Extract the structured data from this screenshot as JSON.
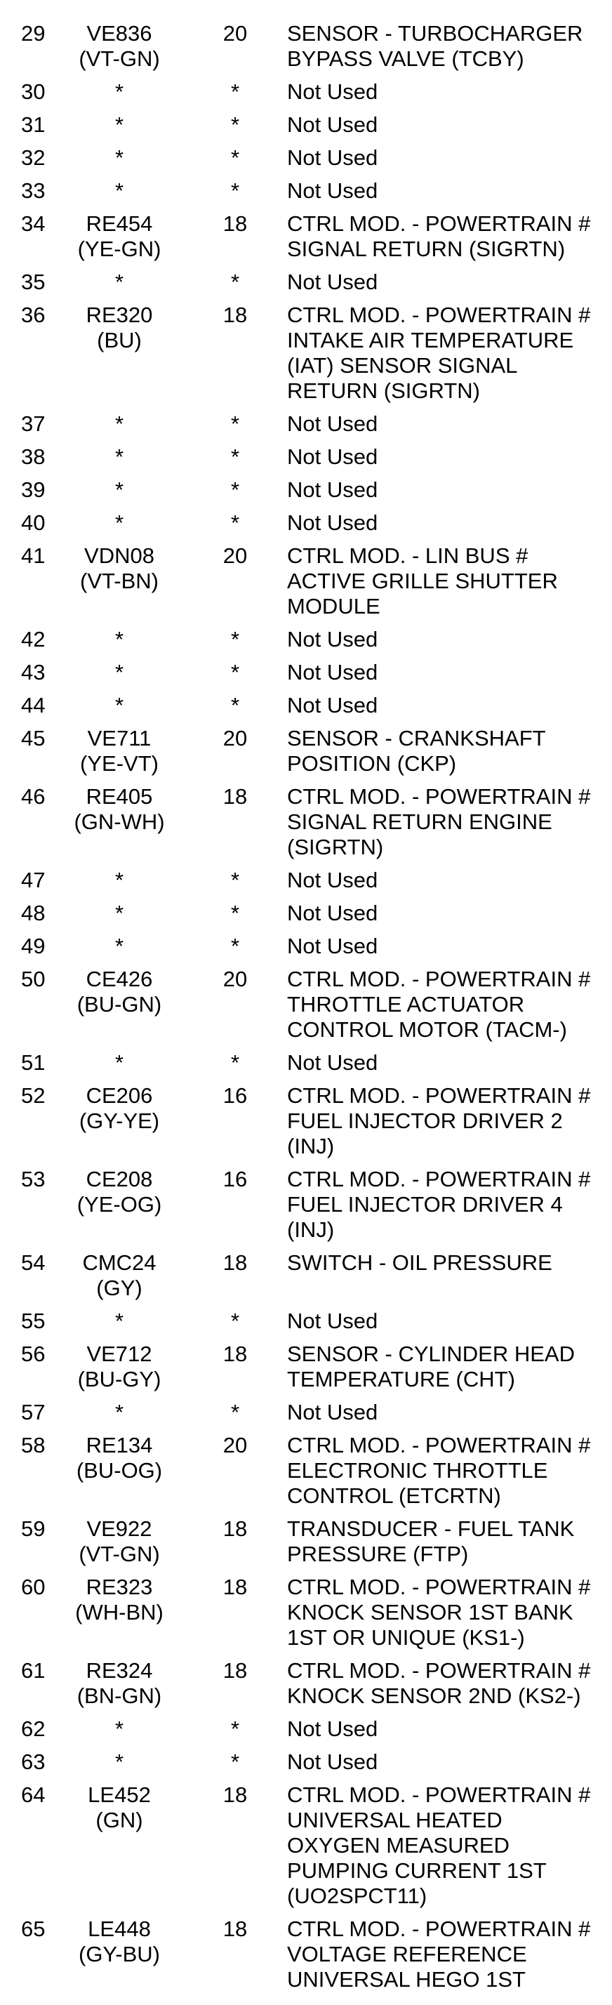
{
  "rows": [
    {
      "pin": "29",
      "wire": "VE836\n(VT-GN)",
      "gauge": "20",
      "desc": "SENSOR - TURBOCHARGER\nBYPASS VALVE (TCBY)"
    },
    {
      "pin": "30",
      "wire": "*",
      "gauge": "*",
      "desc": "Not Used"
    },
    {
      "pin": "31",
      "wire": "*",
      "gauge": "*",
      "desc": "Not Used"
    },
    {
      "pin": "32",
      "wire": "*",
      "gauge": "*",
      "desc": "Not Used"
    },
    {
      "pin": "33",
      "wire": "*",
      "gauge": "*",
      "desc": "Not Used"
    },
    {
      "pin": "34",
      "wire": "RE454\n(YE-GN)",
      "gauge": "18",
      "desc": "CTRL MOD. - POWERTRAIN #\nSIGNAL RETURN (SIGRTN)"
    },
    {
      "pin": "35",
      "wire": "*",
      "gauge": "*",
      "desc": "Not Used"
    },
    {
      "pin": "36",
      "wire": "RE320\n(BU)",
      "gauge": "18",
      "desc": "CTRL MOD. - POWERTRAIN #\nINTAKE AIR TEMPERATURE\n(IAT) SENSOR SIGNAL\nRETURN (SIGRTN)"
    },
    {
      "pin": "37",
      "wire": "*",
      "gauge": "*",
      "desc": "Not Used"
    },
    {
      "pin": "38",
      "wire": "*",
      "gauge": "*",
      "desc": "Not Used"
    },
    {
      "pin": "39",
      "wire": "*",
      "gauge": "*",
      "desc": "Not Used"
    },
    {
      "pin": "40",
      "wire": "*",
      "gauge": "*",
      "desc": "Not Used"
    },
    {
      "pin": "41",
      "wire": "VDN08\n(VT-BN)",
      "gauge": "20",
      "desc": "CTRL MOD. - LIN BUS #\nACTIVE GRILLE SHUTTER\nMODULE"
    },
    {
      "pin": "42",
      "wire": "*",
      "gauge": "*",
      "desc": "Not Used"
    },
    {
      "pin": "43",
      "wire": "*",
      "gauge": "*",
      "desc": "Not Used"
    },
    {
      "pin": "44",
      "wire": "*",
      "gauge": "*",
      "desc": "Not Used"
    },
    {
      "pin": "45",
      "wire": "VE711\n(YE-VT)",
      "gauge": "20",
      "desc": "SENSOR - CRANKSHAFT\nPOSITION (CKP)"
    },
    {
      "pin": "46",
      "wire": "RE405\n(GN-WH)",
      "gauge": "18",
      "desc": "CTRL MOD. - POWERTRAIN #\nSIGNAL RETURN ENGINE\n(SIGRTN)"
    },
    {
      "pin": "47",
      "wire": "*",
      "gauge": "*",
      "desc": "Not Used"
    },
    {
      "pin": "48",
      "wire": "*",
      "gauge": "*",
      "desc": "Not Used"
    },
    {
      "pin": "49",
      "wire": "*",
      "gauge": "*",
      "desc": "Not Used"
    },
    {
      "pin": "50",
      "wire": "CE426\n(BU-GN)",
      "gauge": "20",
      "desc": "CTRL MOD. - POWERTRAIN #\nTHROTTLE ACTUATOR\nCONTROL MOTOR (TACM-)"
    },
    {
      "pin": "51",
      "wire": "*",
      "gauge": "*",
      "desc": "Not Used"
    },
    {
      "pin": "52",
      "wire": "CE206\n(GY-YE)",
      "gauge": "16",
      "desc": "CTRL MOD. - POWERTRAIN #\nFUEL INJECTOR DRIVER 2\n(INJ)"
    },
    {
      "pin": "53",
      "wire": "CE208\n(YE-OG)",
      "gauge": "16",
      "desc": "CTRL MOD. - POWERTRAIN #\nFUEL INJECTOR DRIVER 4\n(INJ)"
    },
    {
      "pin": "54",
      "wire": "CMC24\n(GY)",
      "gauge": "18",
      "desc": "SWITCH - OIL PRESSURE"
    },
    {
      "pin": "55",
      "wire": "*",
      "gauge": "*",
      "desc": "Not Used"
    },
    {
      "pin": "56",
      "wire": "VE712\n(BU-GY)",
      "gauge": "18",
      "desc": "SENSOR - CYLINDER HEAD\nTEMPERATURE (CHT)"
    },
    {
      "pin": "57",
      "wire": "*",
      "gauge": "*",
      "desc": "Not Used"
    },
    {
      "pin": "58",
      "wire": "RE134\n(BU-OG)",
      "gauge": "20",
      "desc": "CTRL MOD. - POWERTRAIN #\nELECTRONIC THROTTLE\nCONTROL (ETCRTN)"
    },
    {
      "pin": "59",
      "wire": "VE922\n(VT-GN)",
      "gauge": "18",
      "desc": "TRANSDUCER - FUEL TANK\nPRESSURE (FTP)"
    },
    {
      "pin": "60",
      "wire": "RE323\n(WH-BN)",
      "gauge": "18",
      "desc": "CTRL MOD. - POWERTRAIN #\nKNOCK SENSOR 1ST BANK\n1ST OR UNIQUE (KS1-)"
    },
    {
      "pin": "61",
      "wire": "RE324\n(BN-GN)",
      "gauge": "18",
      "desc": "CTRL MOD. - POWERTRAIN #\nKNOCK SENSOR 2ND (KS2-)"
    },
    {
      "pin": "62",
      "wire": "*",
      "gauge": "*",
      "desc": "Not Used"
    },
    {
      "pin": "63",
      "wire": "*",
      "gauge": "*",
      "desc": "Not Used"
    },
    {
      "pin": "64",
      "wire": "LE452\n(GN)",
      "gauge": "18",
      "desc": "CTRL MOD. - POWERTRAIN #\nUNIVERSAL HEATED\nOXYGEN MEASURED\nPUMPING CURRENT 1ST\n(UO2SPCT11)"
    },
    {
      "pin": "65",
      "wire": "LE448\n(GY-BU)",
      "gauge": "18",
      "desc": "CTRL MOD. - POWERTRAIN #\nVOLTAGE REFERENCE\nUNIVERSAL HEGO 1ST"
    }
  ]
}
